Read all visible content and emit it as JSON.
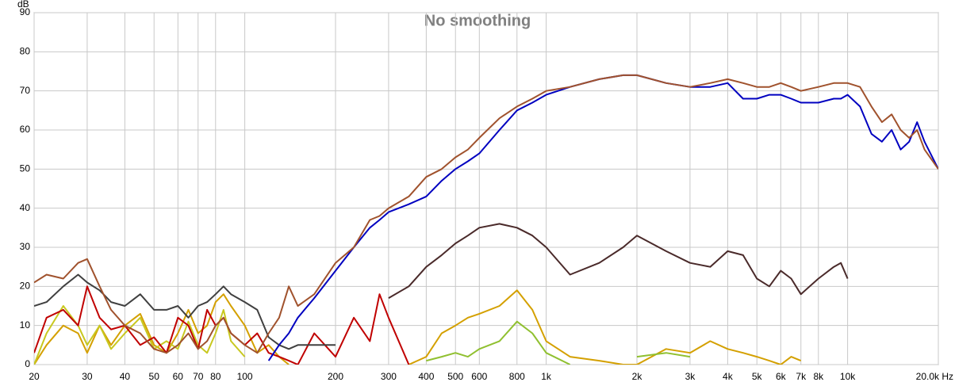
{
  "chart_data": {
    "type": "line",
    "title": "No smoothing",
    "y_label": "dB",
    "xscale": "log",
    "grid": true,
    "x": [
      20,
      22,
      25,
      28,
      30,
      33,
      36,
      40,
      45,
      50,
      55,
      60,
      65,
      70,
      75,
      80,
      85,
      90,
      100,
      110,
      120,
      130,
      140,
      150,
      170,
      200,
      230,
      260,
      280,
      300,
      350,
      400,
      450,
      500,
      550,
      600,
      700,
      800,
      900,
      1000,
      1200,
      1500,
      1800,
      2000,
      2500,
      3000,
      3500,
      4000,
      4500,
      5000,
      5500,
      6000,
      6500,
      7000,
      8000,
      9000,
      9500,
      10000,
      11000,
      12000,
      13000,
      14000,
      15000,
      16000,
      17000,
      18000,
      20000
    ],
    "xlim": [
      20,
      20000
    ],
    "xticks": [
      20,
      30,
      40,
      50,
      60,
      70,
      80,
      100,
      200,
      300,
      400,
      500,
      600,
      800,
      {
        "value": 1000,
        "label": "1k"
      },
      {
        "value": 2000,
        "label": "2k"
      },
      {
        "value": 3000,
        "label": "3k"
      },
      {
        "value": 4000,
        "label": "4k"
      },
      {
        "value": 5000,
        "label": "5k"
      },
      {
        "value": 6000,
        "label": "6k"
      },
      {
        "value": 7000,
        "label": "7k"
      },
      {
        "value": 8000,
        "label": "8k"
      },
      {
        "value": 10000,
        "label": "10k"
      },
      {
        "value": 20000,
        "label": "20.0k Hz"
      }
    ],
    "ylim": [
      0,
      90
    ],
    "yticks": [
      0,
      10,
      20,
      30,
      40,
      50,
      60,
      70,
      80,
      90
    ],
    "series": [
      {
        "color": "#d4a000",
        "values": [
          0,
          5,
          10,
          8,
          3,
          10,
          5,
          10,
          13,
          5,
          3,
          8,
          14,
          8,
          10,
          16,
          18,
          15,
          10,
          3,
          5,
          2,
          0,
          null,
          null,
          null,
          null,
          null,
          null,
          null,
          0,
          2,
          8,
          10,
          12,
          13,
          15,
          19,
          14,
          6,
          2,
          1,
          0,
          0,
          4,
          3,
          6,
          4,
          3,
          2,
          1,
          0,
          2,
          1,
          null,
          null,
          null,
          null,
          null,
          null,
          null,
          null,
          null,
          null,
          null,
          null,
          null
        ]
      },
      {
        "color": "#c8c820",
        "values": [
          0,
          8,
          15,
          10,
          5,
          10,
          4,
          8,
          12,
          4,
          6,
          4,
          11,
          5,
          3,
          8,
          14,
          6,
          2,
          null,
          null,
          null,
          null,
          null,
          null,
          null,
          null,
          null,
          null,
          null,
          null,
          null,
          null,
          null,
          null,
          null,
          null,
          null,
          null,
          null,
          null,
          null,
          null,
          null,
          null,
          null,
          null,
          null,
          null,
          null,
          null,
          null,
          null,
          null,
          null,
          null,
          null,
          null,
          null,
          null,
          null,
          null,
          null,
          null,
          null,
          null,
          null
        ]
      },
      {
        "color": "#90c030",
        "values": [
          null,
          null,
          null,
          null,
          null,
          null,
          null,
          null,
          null,
          null,
          null,
          null,
          null,
          null,
          null,
          null,
          null,
          null,
          null,
          null,
          null,
          null,
          null,
          null,
          null,
          null,
          null,
          null,
          null,
          null,
          null,
          1,
          2,
          3,
          2,
          4,
          6,
          11,
          8,
          3,
          0,
          null,
          null,
          2,
          3,
          2,
          null,
          null,
          null,
          null,
          null,
          null,
          null,
          null,
          null,
          null,
          null,
          null,
          null,
          null,
          null,
          null,
          null,
          null,
          null,
          null,
          null
        ]
      },
      {
        "color": "#c00000",
        "values": [
          3,
          12,
          14,
          10,
          20,
          12,
          9,
          10,
          5,
          7,
          3,
          12,
          10,
          4,
          14,
          10,
          12,
          8,
          5,
          8,
          3,
          2,
          1,
          0,
          8,
          2,
          12,
          6,
          18,
          12,
          0,
          null,
          null,
          null,
          null,
          null,
          null,
          null,
          null,
          null,
          null,
          null,
          null,
          null,
          null,
          null,
          null,
          null,
          null,
          null,
          null,
          null,
          null,
          null,
          null,
          null,
          null,
          null,
          null,
          null,
          null,
          null,
          null,
          null,
          null,
          null,
          null
        ]
      },
      {
        "color": "#404040",
        "values": [
          15,
          16,
          20,
          23,
          21,
          19,
          16,
          15,
          18,
          14,
          14,
          15,
          12,
          15,
          16,
          18,
          20,
          18,
          16,
          14,
          7,
          5,
          4,
          5,
          5,
          5,
          null,
          null,
          null,
          null,
          null,
          null,
          null,
          null,
          null,
          null,
          null,
          null,
          null,
          null,
          null,
          null,
          null,
          null,
          null,
          null,
          null,
          null,
          null,
          null,
          null,
          null,
          null,
          null,
          null,
          null,
          null,
          null,
          null,
          null,
          null,
          null,
          null,
          null,
          null,
          null,
          null
        ]
      },
      {
        "color": "#4a2a2a",
        "values": [
          null,
          null,
          null,
          null,
          null,
          null,
          null,
          null,
          null,
          null,
          null,
          null,
          null,
          null,
          null,
          null,
          null,
          null,
          null,
          null,
          null,
          null,
          null,
          null,
          null,
          null,
          null,
          null,
          null,
          17,
          20,
          25,
          28,
          31,
          33,
          35,
          36,
          35,
          33,
          30,
          23,
          26,
          30,
          33,
          29,
          26,
          25,
          29,
          28,
          22,
          20,
          24,
          22,
          18,
          22,
          25,
          26,
          22,
          null,
          null,
          null,
          null,
          null,
          null,
          null,
          null,
          null
        ]
      },
      {
        "color": "#0000c0",
        "values": [
          null,
          null,
          null,
          null,
          null,
          null,
          null,
          null,
          null,
          null,
          null,
          null,
          null,
          null,
          null,
          null,
          null,
          null,
          null,
          null,
          1,
          5,
          8,
          12,
          17,
          24,
          30,
          35,
          37,
          39,
          41,
          43,
          47,
          50,
          52,
          54,
          60,
          65,
          67,
          69,
          71,
          73,
          74,
          74,
          72,
          71,
          71,
          72,
          68,
          68,
          69,
          69,
          68,
          67,
          67,
          68,
          68,
          69,
          66,
          59,
          57,
          60,
          55,
          57,
          62,
          57,
          50
        ]
      },
      {
        "color": "#a0522d",
        "values": [
          21,
          23,
          22,
          26,
          27,
          20,
          14,
          10,
          8,
          4,
          3,
          5,
          8,
          4,
          6,
          10,
          12,
          8,
          5,
          3,
          8,
          12,
          20,
          15,
          18,
          26,
          30,
          37,
          38,
          40,
          43,
          48,
          50,
          53,
          55,
          58,
          63,
          66,
          68,
          70,
          71,
          73,
          74,
          74,
          72,
          71,
          72,
          73,
          72,
          71,
          71,
          72,
          71,
          70,
          71,
          72,
          72,
          72,
          71,
          66,
          62,
          64,
          60,
          58,
          60,
          55,
          50
        ]
      }
    ]
  }
}
